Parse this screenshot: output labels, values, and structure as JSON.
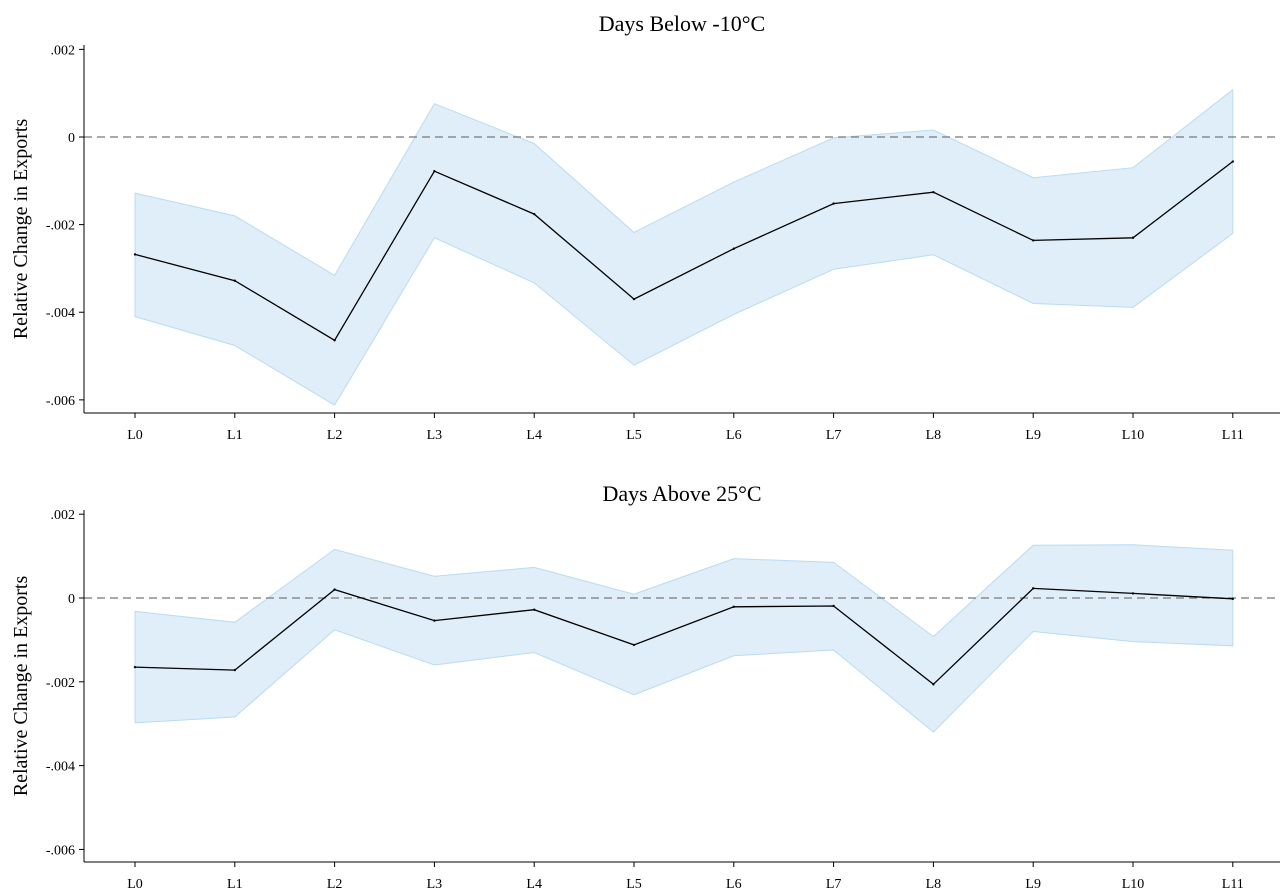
{
  "chart_data": [
    {
      "type": "line",
      "title": "Days Below -10°C",
      "xlabel": "",
      "ylabel": "Relative Change in Exports",
      "categories": [
        "L0",
        "L1",
        "L2",
        "L3",
        "L4",
        "L5",
        "L6",
        "L7",
        "L8",
        "L9",
        "L10",
        "L11"
      ],
      "series": [
        {
          "values": [
            -0.00268,
            -0.00328,
            -0.00464,
            -0.00078,
            -0.00176,
            -0.0037,
            -0.00255,
            -0.00152,
            -0.00126,
            -0.00236,
            -0.0023,
            -0.00056
          ],
          "lower": [
            -0.0041,
            -0.00476,
            -0.00612,
            -0.0023,
            -0.00333,
            -0.00521,
            -0.00405,
            -0.00302,
            -0.00269,
            -0.0038,
            -0.00389,
            -0.0022
          ],
          "upper": [
            -0.00128,
            -0.0018,
            -0.00316,
            0.00076,
            -0.00015,
            -0.00218,
            -0.00103,
            -2e-05,
            0.00016,
            -0.00093,
            -0.0007,
            0.00108
          ]
        }
      ],
      "yticks": [
        0.002,
        0,
        -0.002,
        -0.004,
        -0.006
      ],
      "ytick_labels": [
        ".002",
        "0",
        "-.002",
        "-.004",
        "-.006"
      ],
      "ylim": [
        -0.0063,
        0.0021
      ],
      "reference_line": 0,
      "grid": false,
      "colors": {
        "line": "#000000",
        "band": "#dfeef8",
        "band_edge": "#b9dcf1",
        "reference": "#777777"
      }
    },
    {
      "type": "line",
      "title": "Days Above 25°C",
      "xlabel": "",
      "ylabel": "Relative Change in Exports",
      "categories": [
        "L0",
        "L1",
        "L2",
        "L3",
        "L4",
        "L5",
        "L6",
        "L7",
        "L8",
        "L9",
        "L10",
        "L11"
      ],
      "series": [
        {
          "values": [
            -0.00165,
            -0.00172,
            0.0002,
            -0.00054,
            -0.00028,
            -0.00112,
            -0.00021,
            -0.00019,
            -0.00206,
            0.00023,
            0.00011,
            -2e-05
          ],
          "lower": [
            -0.00298,
            -0.00284,
            -0.00076,
            -0.0016,
            -0.0013,
            -0.00231,
            -0.00138,
            -0.00124,
            -0.0032,
            -0.0008,
            -0.00104,
            -0.00114
          ],
          "upper": [
            -0.00032,
            -0.00058,
            0.00116,
            0.00052,
            0.00073,
            9e-05,
            0.00094,
            0.00085,
            -0.00092,
            0.00126,
            0.00127,
            0.00114
          ]
        }
      ],
      "yticks": [
        0.002,
        0,
        -0.002,
        -0.004,
        -0.006
      ],
      "ytick_labels": [
        ".002",
        "0",
        "-.002",
        "-.004",
        "-.006"
      ],
      "ylim": [
        -0.0063,
        0.0021
      ],
      "reference_line": 0,
      "grid": false,
      "colors": {
        "line": "#000000",
        "band": "#dfeef8",
        "band_edge": "#b9dcf1",
        "reference": "#777777"
      }
    }
  ]
}
